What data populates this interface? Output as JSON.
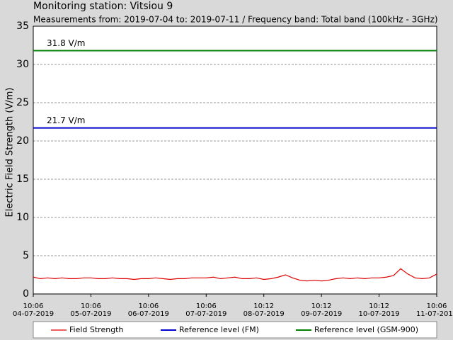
{
  "chart_data": {
    "type": "line",
    "title": "Monitoring station: Vitsiou 9",
    "subtitle": "Measurements from: 2019-07-04 to: 2019-07-11 / Frequency band: Total band (100kHz - 3GHz)",
    "y_label": "Electric Field Strength (V/m)",
    "xlim": [
      0,
      7
    ],
    "xticks": [
      {
        "value": 0,
        "label": [
          "10:06",
          "04-07-2019"
        ]
      },
      {
        "value": 1,
        "label": [
          "10:06",
          "05-07-2019"
        ]
      },
      {
        "value": 2,
        "label": [
          "10:06",
          "06-07-2019"
        ]
      },
      {
        "value": 3,
        "label": [
          "10:06",
          "07-07-2019"
        ]
      },
      {
        "value": 4,
        "label": [
          "10:12",
          "08-07-2019"
        ]
      },
      {
        "value": 5,
        "label": [
          "10:12",
          "09-07-2019"
        ]
      },
      {
        "value": 6,
        "label": [
          "10:12",
          "10-07-2019"
        ]
      },
      {
        "value": 7,
        "label": [
          "10:06",
          "11-07-2019"
        ]
      }
    ],
    "ylim": [
      0,
      35
    ],
    "yticks": [
      0,
      5,
      10,
      15,
      20,
      25,
      30,
      35
    ],
    "grid": true,
    "x": [
      0,
      0.125,
      0.25,
      0.375,
      0.5,
      0.625,
      0.75,
      0.875,
      1,
      1.125,
      1.25,
      1.375,
      1.5,
      1.625,
      1.75,
      1.875,
      2,
      2.125,
      2.25,
      2.375,
      2.5,
      2.625,
      2.75,
      2.875,
      3,
      3.125,
      3.25,
      3.375,
      3.5,
      3.625,
      3.75,
      3.875,
      4,
      4.125,
      4.25,
      4.375,
      4.5,
      4.625,
      4.75,
      4.875,
      5,
      5.125,
      5.25,
      5.375,
      5.5,
      5.625,
      5.75,
      5.875,
      6,
      6.125,
      6.25,
      6.375,
      6.5,
      6.625,
      6.75,
      6.875,
      7
    ],
    "series": [
      {
        "name": "Field Strength",
        "color": "#dd0000",
        "values": [
          2.2,
          2.0,
          2.1,
          2.0,
          2.1,
          2.0,
          2.0,
          2.1,
          2.1,
          2.0,
          2.0,
          2.1,
          2.0,
          2.0,
          1.9,
          2.0,
          2.0,
          2.1,
          2.0,
          1.9,
          2.0,
          2.0,
          2.1,
          2.1,
          2.1,
          2.2,
          2.0,
          2.1,
          2.2,
          2.0,
          2.0,
          2.1,
          1.9,
          2.0,
          2.2,
          2.5,
          2.1,
          1.8,
          1.7,
          1.8,
          1.7,
          1.8,
          2.0,
          2.1,
          2.0,
          2.1,
          2.0,
          2.1,
          2.1,
          2.2,
          2.4,
          3.3,
          2.6,
          2.1,
          2.0,
          2.1,
          2.6
        ]
      }
    ],
    "reference_lines": [
      {
        "name": "Reference level (FM)",
        "color": "#0000cc",
        "value": 21.7,
        "value_label": "21.7 V/m"
      },
      {
        "name": "Reference level (GSM-900)",
        "color": "#008000",
        "value": 31.8,
        "value_label": "31.8 V/m"
      }
    ]
  }
}
